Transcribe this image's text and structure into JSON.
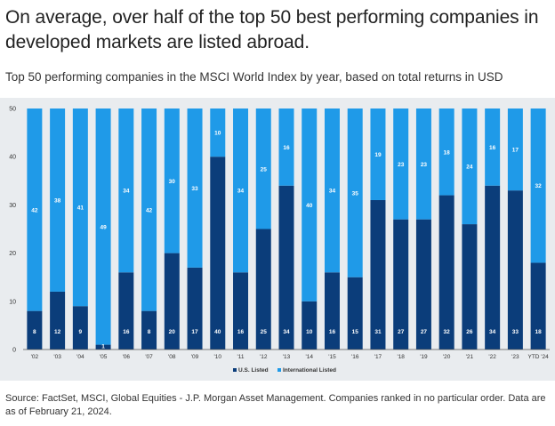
{
  "title": "On average, over half of the top 50 best performing companies in developed markets are listed abroad.",
  "subtitle": "Top 50 performing companies in the MSCI World Index by year, based on total returns in USD",
  "source": "Source: FactSet, MSCI, Global Equities - J.P. Morgan Asset Management. Companies ranked in no particular order. Data are as of February 21, 2024.",
  "chart_data": {
    "type": "bar",
    "stacked": true,
    "categories": [
      "'02",
      "'03",
      "'04",
      "'05",
      "'06",
      "'07",
      "'08",
      "'09",
      "'10",
      "'11",
      "'12",
      "'13",
      "'14",
      "'15",
      "'16",
      "'17",
      "'18",
      "'19",
      "'20",
      "'21",
      "'22",
      "'23",
      "YTD '24"
    ],
    "series": [
      {
        "name": "U.S. Listed",
        "color": "#0b3d7a",
        "values": [
          8,
          12,
          9,
          1,
          16,
          8,
          20,
          17,
          40,
          16,
          25,
          34,
          10,
          16,
          15,
          31,
          27,
          27,
          32,
          26,
          34,
          33,
          18
        ]
      },
      {
        "name": "International Listed",
        "color": "#1f9ae8",
        "values": [
          42,
          38,
          41,
          49,
          34,
          42,
          30,
          33,
          10,
          34,
          25,
          16,
          40,
          34,
          35,
          19,
          23,
          23,
          18,
          24,
          16,
          17,
          32
        ]
      }
    ],
    "yticks": [
      0,
      10,
      20,
      30,
      40,
      50
    ],
    "ylim": [
      0,
      50
    ],
    "legend_position": "bottom",
    "grid": false
  }
}
